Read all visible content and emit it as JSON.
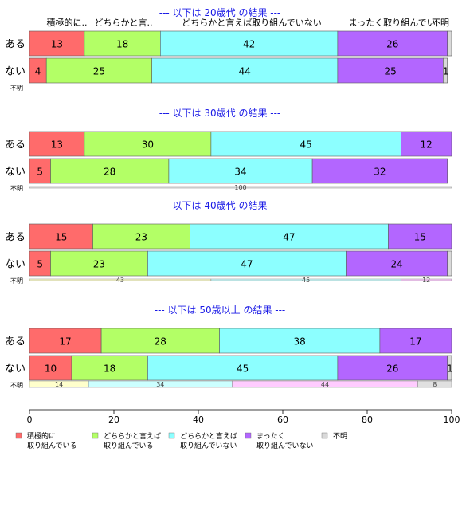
{
  "chart_data": {
    "type": "bar",
    "orientation": "horizontal",
    "stacked": true,
    "xlim": [
      0,
      100
    ],
    "x_ticks": [
      "0",
      "20",
      "40",
      "60",
      "80",
      "100"
    ],
    "colors": {
      "cat1": "#FF6B6B",
      "cat2": "#B3FF66",
      "cat3": "#8CFFFF",
      "cat4": "#B366FF",
      "cat5": "#D9D9D9"
    },
    "panel_colors": {
      "cat1": "#FFFFCC",
      "cat2": "#CCFFFF",
      "cat3": "#FFCCFF",
      "cat4": "#E0E0E0",
      "cat5": "#F0F0F0"
    },
    "top_header_labels": [
      "積極的に..",
      "どちらかと言..",
      "どちらかと言えば取り組んでいない",
      "まったく取り組んでい.",
      "不明"
    ],
    "legend": [
      {
        "key": "cat1",
        "line1": "積極的に",
        "line2": "取り組んでいる"
      },
      {
        "key": "cat2",
        "line1": "どちらかと言えば",
        "line2": "取り組んでいる"
      },
      {
        "key": "cat3",
        "line1": "どちらかと言えば",
        "line2": "取り組んでいない"
      },
      {
        "key": "cat4",
        "line1": "まったく",
        "line2": "取り組んでいない"
      },
      {
        "key": "cat5",
        "line1": "不明",
        "line2": ""
      }
    ],
    "panels": [
      {
        "title": "--- 以下は 20歳代 の結果 ---",
        "rows": [
          {
            "label": "ある",
            "values": [
              13,
              18,
              42,
              26,
              1
            ],
            "labels": [
              "13",
              "18",
              "42",
              "26",
              ""
            ]
          },
          {
            "label": "ない",
            "values": [
              4,
              25,
              44,
              25,
              1
            ],
            "labels": [
              "4",
              "25",
              "44",
              "25",
              "1"
            ]
          }
        ],
        "unknown": {
          "label": "不明",
          "values": [],
          "labels": []
        }
      },
      {
        "title": "--- 以下は 30歳代 の結果 ---",
        "rows": [
          {
            "label": "ある",
            "values": [
              13,
              30,
              45,
              12,
              1
            ],
            "labels": [
              "13",
              "30",
              "45",
              "12",
              ""
            ]
          },
          {
            "label": "ない",
            "values": [
              5,
              28,
              34,
              32,
              0
            ],
            "labels": [
              "5",
              "28",
              "34",
              "32",
              ""
            ]
          }
        ],
        "unknown": {
          "label": "不明",
          "values": [
            100
          ],
          "labels": [
            "100"
          ]
        }
      },
      {
        "title": "--- 以下は 40歳代 の結果 ---",
        "rows": [
          {
            "label": "ある",
            "values": [
              15,
              23,
              47,
              15,
              0
            ],
            "labels": [
              "15",
              "23",
              "47",
              "15",
              ""
            ]
          },
          {
            "label": "ない",
            "values": [
              5,
              23,
              47,
              24,
              1
            ],
            "labels": [
              "5",
              "23",
              "47",
              "24",
              ""
            ]
          }
        ],
        "unknown": {
          "label": "不明",
          "values": [
            43,
            45,
            12
          ],
          "labels": [
            "43",
            "45",
            "12"
          ]
        }
      },
      {
        "title": "--- 以下は 50歳以上 の結果 ---",
        "rows": [
          {
            "label": "ある",
            "values": [
              17,
              28,
              38,
              17,
              0
            ],
            "labels": [
              "17",
              "28",
              "38",
              "17",
              ""
            ]
          },
          {
            "label": "ない",
            "values": [
              10,
              18,
              45,
              26,
              1
            ],
            "labels": [
              "10",
              "18",
              "45",
              "26",
              "1"
            ]
          }
        ],
        "unknown": {
          "label": "不明",
          "values": [
            14,
            34,
            44,
            8
          ],
          "labels": [
            "14",
            "34",
            "44",
            "8"
          ]
        }
      }
    ]
  }
}
